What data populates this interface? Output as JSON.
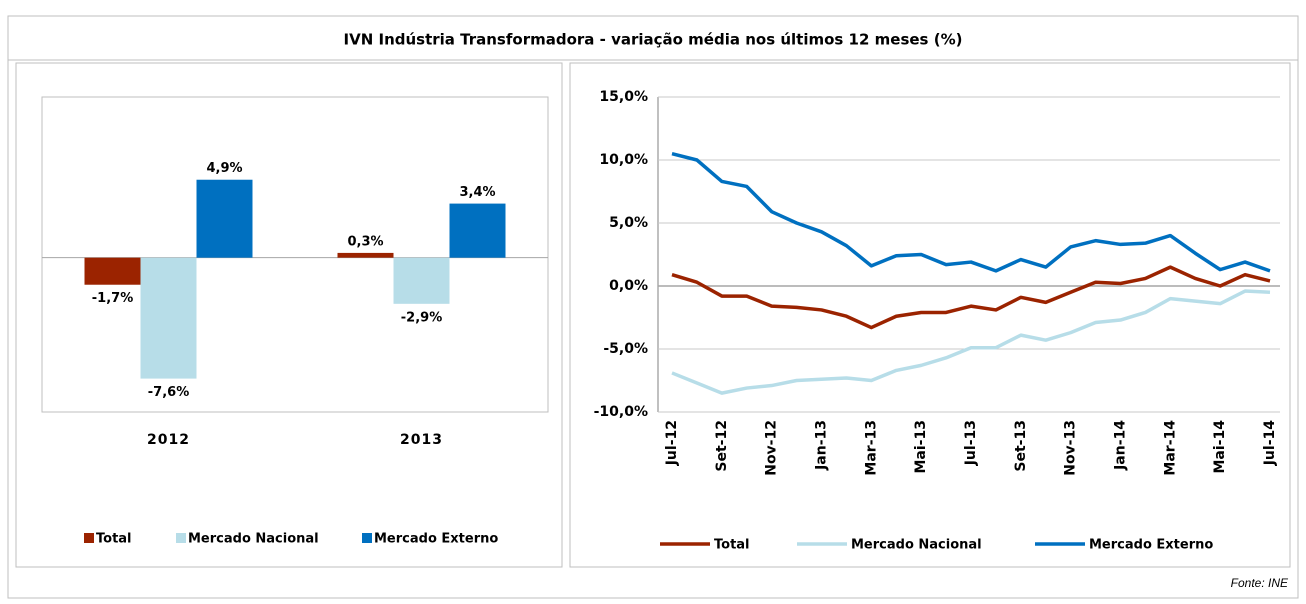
{
  "title": "IVN Indústria Transformadora - variação média nos últimos 12 meses (%)",
  "source": "Fonte: INE",
  "chart_data": [
    {
      "type": "bar",
      "categories": [
        "2012",
        "2013"
      ],
      "series": [
        {
          "name": "Total",
          "color": "#9b2300",
          "values": [
            -1.7,
            0.3
          ],
          "value_labels": [
            "-1,7%",
            "0,3%"
          ]
        },
        {
          "name": "Mercado Nacional",
          "color": "#b7dde8",
          "values": [
            -7.6,
            -2.9
          ],
          "value_labels": [
            "-7,6%",
            "-2,9%"
          ]
        },
        {
          "name": "Mercado Externo",
          "color": "#0070c0",
          "values": [
            4.9,
            3.4
          ],
          "value_labels": [
            "4,9%",
            "3,4%"
          ]
        }
      ],
      "ylim": [
        -9.7,
        10.1
      ],
      "legend": "bottom"
    },
    {
      "type": "line",
      "categories": [
        "Jul-12",
        null,
        "Set-12",
        null,
        "Nov-12",
        null,
        "Jan-13",
        null,
        "Mar-13",
        null,
        "Mai-13",
        null,
        "Jul-13",
        null,
        "Set-13",
        null,
        "Nov-13",
        null,
        "Jan-14",
        null,
        "Mar-14",
        null,
        "Mai-14",
        null,
        "Jul-14"
      ],
      "series": [
        {
          "name": "Total",
          "color": "#9b2300",
          "values": [
            0.9,
            0.3,
            -0.8,
            -0.8,
            -1.6,
            -1.7,
            -1.9,
            -2.4,
            -3.3,
            -2.4,
            -2.1,
            -2.1,
            -1.6,
            -1.9,
            -0.9,
            -1.3,
            -0.5,
            0.3,
            0.2,
            0.6,
            1.5,
            0.6,
            0.0,
            0.9,
            0.4
          ]
        },
        {
          "name": "Mercado Nacional",
          "color": "#b7dde8",
          "values": [
            -6.9,
            -7.7,
            -8.5,
            -8.1,
            -7.9,
            -7.5,
            -7.4,
            -7.3,
            -7.5,
            -6.7,
            -6.3,
            -5.7,
            -4.9,
            -4.9,
            -3.9,
            -4.3,
            -3.7,
            -2.9,
            -2.7,
            -2.1,
            -1.0,
            -1.2,
            -1.4,
            -0.4,
            -0.5
          ]
        },
        {
          "name": "Mercado Externo",
          "color": "#0070c0",
          "values": [
            10.5,
            10.0,
            8.3,
            7.9,
            5.9,
            5.0,
            4.3,
            3.2,
            1.6,
            2.4,
            2.5,
            1.7,
            1.9,
            1.2,
            2.1,
            1.5,
            3.1,
            3.6,
            3.3,
            3.4,
            4.0,
            2.6,
            1.3,
            1.9,
            1.2
          ]
        }
      ],
      "ylim": [
        -10,
        15
      ],
      "yticks": [
        {
          "value": -10,
          "label": "-10,0%"
        },
        {
          "value": -5,
          "label": "-5,0%"
        },
        {
          "value": 0,
          "label": "0,0%"
        },
        {
          "value": 5,
          "label": "5,0%"
        },
        {
          "value": 10,
          "label": "10,0%"
        },
        {
          "value": 15,
          "label": "15,0%"
        }
      ],
      "grid": true,
      "legend": "bottom"
    }
  ]
}
